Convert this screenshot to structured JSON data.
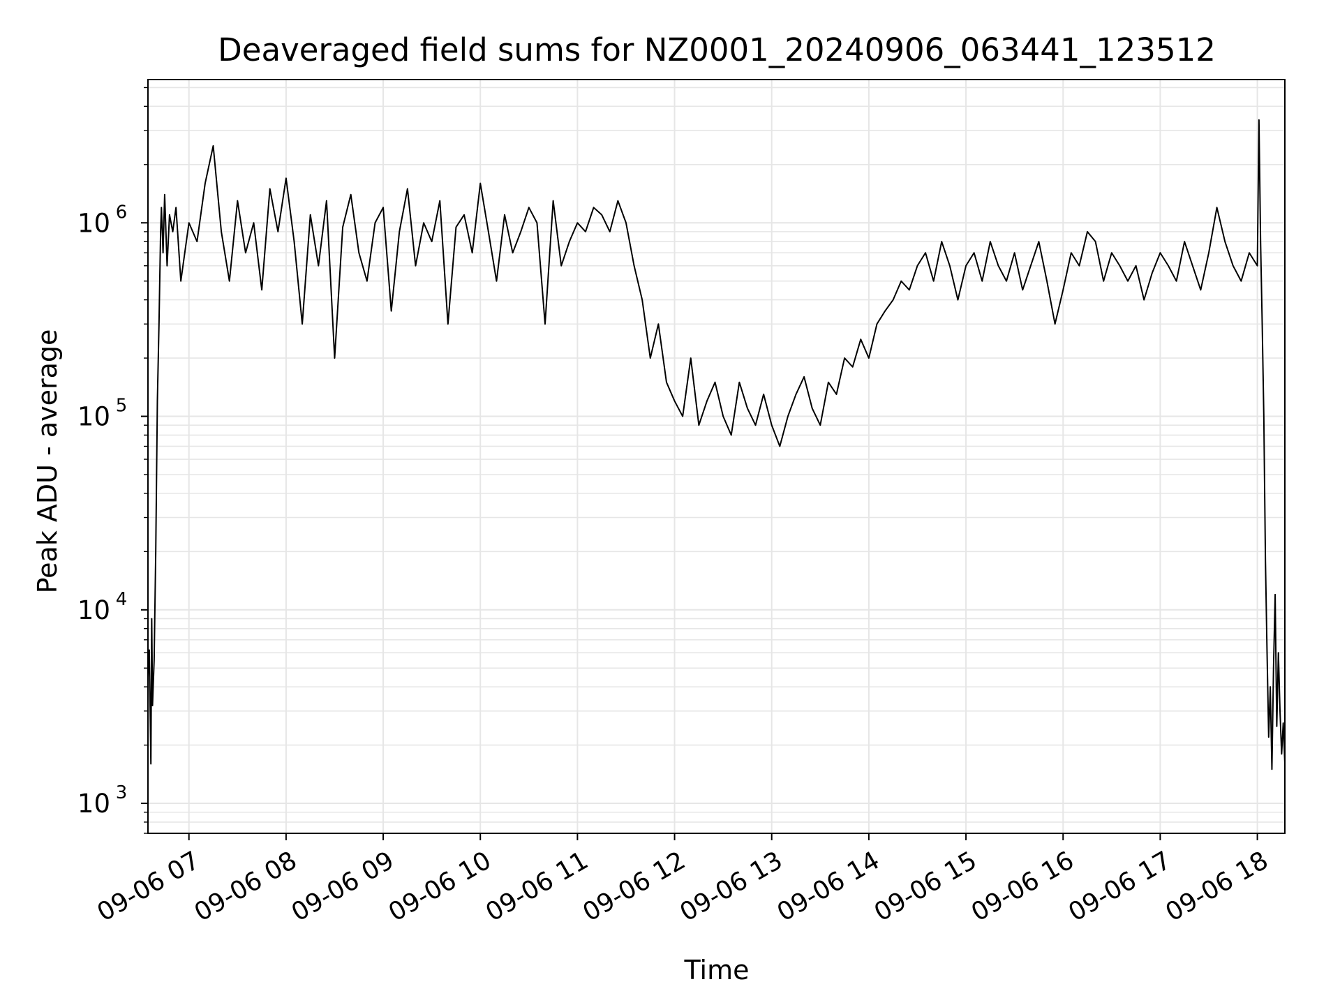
{
  "chart_data": {
    "type": "line",
    "title": "Deaveraged field sums for NZ0001_20240906_063441_123512",
    "xlabel": "Time",
    "ylabel": "Peak ADU - average",
    "y_scale": "log",
    "ylim": [
      700,
      5500000
    ],
    "xlim": [
      "2024-09-06T06:34:41",
      "2024-09-06T18:17:00"
    ],
    "grid": true,
    "series_color": "#000000",
    "grid_color": "#e6e6e6",
    "x_ticks": [
      {
        "value": "2024-09-06T07:00:00",
        "label": "09-06 07"
      },
      {
        "value": "2024-09-06T08:00:00",
        "label": "09-06 08"
      },
      {
        "value": "2024-09-06T09:00:00",
        "label": "09-06 09"
      },
      {
        "value": "2024-09-06T10:00:00",
        "label": "09-06 10"
      },
      {
        "value": "2024-09-06T11:00:00",
        "label": "09-06 11"
      },
      {
        "value": "2024-09-06T12:00:00",
        "label": "09-06 12"
      },
      {
        "value": "2024-09-06T13:00:00",
        "label": "09-06 13"
      },
      {
        "value": "2024-09-06T14:00:00",
        "label": "09-06 14"
      },
      {
        "value": "2024-09-06T15:00:00",
        "label": "09-06 15"
      },
      {
        "value": "2024-09-06T16:00:00",
        "label": "09-06 16"
      },
      {
        "value": "2024-09-06T17:00:00",
        "label": "09-06 17"
      },
      {
        "value": "2024-09-06T18:00:00",
        "label": "09-06 18"
      }
    ],
    "y_ticks": [
      {
        "value": 1000,
        "base": "10",
        "exp": "3"
      },
      {
        "value": 10000,
        "base": "10",
        "exp": "4"
      },
      {
        "value": 100000,
        "base": "10",
        "exp": "5"
      },
      {
        "value": 1000000,
        "base": "10",
        "exp": "6"
      }
    ],
    "series": [
      {
        "x": [
          "2024-09-06T06:34:41",
          "2024-09-06T06:35:30",
          "2024-09-06T06:36:30",
          "2024-09-06T06:37:00",
          "2024-09-06T06:37:30",
          "2024-09-06T06:38:30",
          "2024-09-06T06:39:30",
          "2024-09-06T06:40:30",
          "2024-09-06T06:41:30",
          "2024-09-06T06:42:30",
          "2024-09-06T06:43:00",
          "2024-09-06T06:44:00",
          "2024-09-06T06:45:00",
          "2024-09-06T06:46:30",
          "2024-09-06T06:48:00",
          "2024-09-06T06:50:00",
          "2024-09-06T06:52:00",
          "2024-09-06T06:55:00",
          "2024-09-06T07:00:00",
          "2024-09-06T07:05:00",
          "2024-09-06T07:10:00",
          "2024-09-06T07:15:00",
          "2024-09-06T07:20:00",
          "2024-09-06T07:25:00",
          "2024-09-06T07:30:00",
          "2024-09-06T07:35:00",
          "2024-09-06T07:40:00",
          "2024-09-06T07:45:00",
          "2024-09-06T07:50:00",
          "2024-09-06T07:55:00",
          "2024-09-06T08:00:00",
          "2024-09-06T08:05:00",
          "2024-09-06T08:10:00",
          "2024-09-06T08:15:00",
          "2024-09-06T08:20:00",
          "2024-09-06T08:25:00",
          "2024-09-06T08:30:00",
          "2024-09-06T08:35:00",
          "2024-09-06T08:40:00",
          "2024-09-06T08:45:00",
          "2024-09-06T08:50:00",
          "2024-09-06T08:55:00",
          "2024-09-06T09:00:00",
          "2024-09-06T09:05:00",
          "2024-09-06T09:10:00",
          "2024-09-06T09:15:00",
          "2024-09-06T09:20:00",
          "2024-09-06T09:25:00",
          "2024-09-06T09:30:00",
          "2024-09-06T09:35:00",
          "2024-09-06T09:40:00",
          "2024-09-06T09:45:00",
          "2024-09-06T09:50:00",
          "2024-09-06T09:55:00",
          "2024-09-06T10:00:00",
          "2024-09-06T10:05:00",
          "2024-09-06T10:10:00",
          "2024-09-06T10:15:00",
          "2024-09-06T10:20:00",
          "2024-09-06T10:25:00",
          "2024-09-06T10:30:00",
          "2024-09-06T10:35:00",
          "2024-09-06T10:40:00",
          "2024-09-06T10:45:00",
          "2024-09-06T10:50:00",
          "2024-09-06T10:55:00",
          "2024-09-06T11:00:00",
          "2024-09-06T11:05:00",
          "2024-09-06T11:10:00",
          "2024-09-06T11:15:00",
          "2024-09-06T11:20:00",
          "2024-09-06T11:25:00",
          "2024-09-06T11:30:00",
          "2024-09-06T11:35:00",
          "2024-09-06T11:40:00",
          "2024-09-06T11:45:00",
          "2024-09-06T11:50:00",
          "2024-09-06T11:55:00",
          "2024-09-06T12:00:00",
          "2024-09-06T12:05:00",
          "2024-09-06T12:10:00",
          "2024-09-06T12:15:00",
          "2024-09-06T12:20:00",
          "2024-09-06T12:25:00",
          "2024-09-06T12:30:00",
          "2024-09-06T12:35:00",
          "2024-09-06T12:40:00",
          "2024-09-06T12:45:00",
          "2024-09-06T12:50:00",
          "2024-09-06T12:55:00",
          "2024-09-06T13:00:00",
          "2024-09-06T13:05:00",
          "2024-09-06T13:10:00",
          "2024-09-06T13:15:00",
          "2024-09-06T13:20:00",
          "2024-09-06T13:25:00",
          "2024-09-06T13:30:00",
          "2024-09-06T13:35:00",
          "2024-09-06T13:40:00",
          "2024-09-06T13:45:00",
          "2024-09-06T13:50:00",
          "2024-09-06T13:55:00",
          "2024-09-06T14:00:00",
          "2024-09-06T14:05:00",
          "2024-09-06T14:10:00",
          "2024-09-06T14:15:00",
          "2024-09-06T14:20:00",
          "2024-09-06T14:25:00",
          "2024-09-06T14:30:00",
          "2024-09-06T14:35:00",
          "2024-09-06T14:40:00",
          "2024-09-06T14:45:00",
          "2024-09-06T14:50:00",
          "2024-09-06T14:55:00",
          "2024-09-06T15:00:00",
          "2024-09-06T15:05:00",
          "2024-09-06T15:10:00",
          "2024-09-06T15:15:00",
          "2024-09-06T15:20:00",
          "2024-09-06T15:25:00",
          "2024-09-06T15:30:00",
          "2024-09-06T15:35:00",
          "2024-09-06T15:40:00",
          "2024-09-06T15:45:00",
          "2024-09-06T15:50:00",
          "2024-09-06T15:55:00",
          "2024-09-06T16:00:00",
          "2024-09-06T16:05:00",
          "2024-09-06T16:10:00",
          "2024-09-06T16:15:00",
          "2024-09-06T16:20:00",
          "2024-09-06T16:25:00",
          "2024-09-06T16:30:00",
          "2024-09-06T16:35:00",
          "2024-09-06T16:40:00",
          "2024-09-06T16:45:00",
          "2024-09-06T16:50:00",
          "2024-09-06T16:55:00",
          "2024-09-06T17:00:00",
          "2024-09-06T17:05:00",
          "2024-09-06T17:10:00",
          "2024-09-06T17:15:00",
          "2024-09-06T17:20:00",
          "2024-09-06T17:25:00",
          "2024-09-06T17:30:00",
          "2024-09-06T17:35:00",
          "2024-09-06T17:40:00",
          "2024-09-06T17:45:00",
          "2024-09-06T17:50:00",
          "2024-09-06T17:55:00",
          "2024-09-06T18:00:00",
          "2024-09-06T18:01:00",
          "2024-09-06T18:02:00",
          "2024-09-06T18:03:00",
          "2024-09-06T18:04:00",
          "2024-09-06T18:05:00",
          "2024-09-06T18:06:00",
          "2024-09-06T18:07:00",
          "2024-09-06T18:08:00",
          "2024-09-06T18:09:00",
          "2024-09-06T18:10:00",
          "2024-09-06T18:11:00",
          "2024-09-06T18:12:00",
          "2024-09-06T18:13:00",
          "2024-09-06T18:14:00",
          "2024-09-06T18:15:00",
          "2024-09-06T18:16:00",
          "2024-09-06T18:17:00"
        ],
        "y": [
          4500,
          6200,
          1600,
          9000,
          3200,
          5500,
          20000,
          120000,
          300000,
          900000,
          1200000,
          700000,
          1400000,
          600000,
          1100000,
          900000,
          1200000,
          500000,
          1000000,
          800000,
          1600000,
          2500000,
          900000,
          500000,
          1300000,
          700000,
          1000000,
          450000,
          1500000,
          900000,
          1700000,
          800000,
          300000,
          1100000,
          600000,
          1300000,
          200000,
          950000,
          1400000,
          700000,
          500000,
          1000000,
          1200000,
          350000,
          900000,
          1500000,
          600000,
          1000000,
          800000,
          1300000,
          300000,
          950000,
          1100000,
          700000,
          1600000,
          900000,
          500000,
          1100000,
          700000,
          900000,
          1200000,
          1000000,
          300000,
          1300000,
          600000,
          800000,
          1000000,
          900000,
          1200000,
          1100000,
          900000,
          1300000,
          1000000,
          600000,
          400000,
          200000,
          300000,
          150000,
          120000,
          100000,
          200000,
          90000,
          120000,
          150000,
          100000,
          80000,
          150000,
          110000,
          90000,
          130000,
          90000,
          70000,
          100000,
          130000,
          160000,
          110000,
          90000,
          150000,
          130000,
          200000,
          180000,
          250000,
          200000,
          300000,
          350000,
          400000,
          500000,
          450000,
          600000,
          700000,
          500000,
          800000,
          600000,
          400000,
          600000,
          700000,
          500000,
          800000,
          600000,
          500000,
          700000,
          450000,
          600000,
          800000,
          500000,
          300000,
          450000,
          700000,
          600000,
          900000,
          800000,
          500000,
          700000,
          600000,
          500000,
          600000,
          400000,
          550000,
          700000,
          600000,
          500000,
          800000,
          600000,
          450000,
          700000,
          1200000,
          800000,
          600000,
          500000,
          700000,
          600000,
          3400000,
          800000,
          300000,
          100000,
          18000,
          6000,
          2200,
          4000,
          1500,
          5000,
          12000,
          2500,
          6000,
          3000,
          1800,
          2600,
          1600
        ]
      }
    ]
  }
}
